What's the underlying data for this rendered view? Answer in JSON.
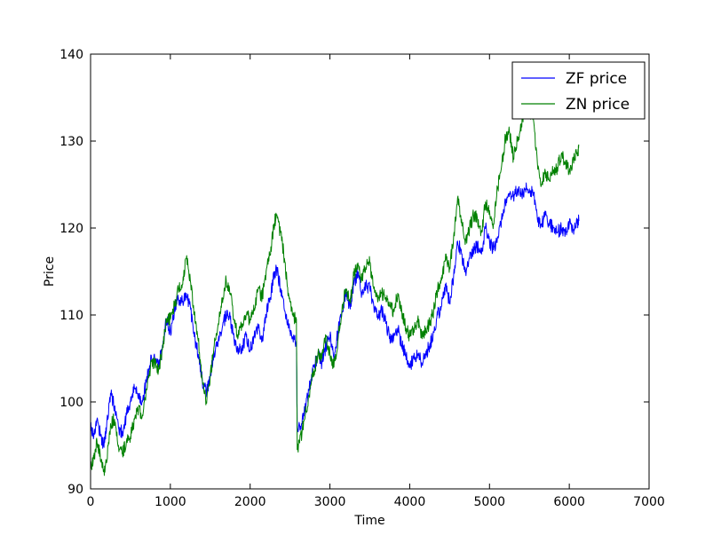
{
  "chart_data": {
    "type": "line",
    "title": "",
    "xlabel": "Time",
    "ylabel": "Price",
    "xlim": [
      0,
      7000
    ],
    "ylim": [
      90,
      140
    ],
    "x_ticks": [
      0,
      1000,
      2000,
      3000,
      4000,
      5000,
      6000,
      7000
    ],
    "x_tick_labels": [
      "0",
      "1000",
      "2000",
      "3000",
      "4000",
      "5000",
      "6000",
      "7000"
    ],
    "y_ticks": [
      90,
      100,
      110,
      120,
      130,
      140
    ],
    "y_tick_labels": [
      "90",
      "100",
      "110",
      "120",
      "130",
      "140"
    ],
    "grid": false,
    "legend_position": "upper right",
    "series": [
      {
        "name": "ZF price",
        "color": "#0000ff",
        "points": [
          [
            0,
            97.5
          ],
          [
            40,
            96.0
          ],
          [
            80,
            98.0
          ],
          [
            120,
            96.5
          ],
          [
            160,
            95.0
          ],
          [
            200,
            97.0
          ],
          [
            250,
            101.0
          ],
          [
            300,
            99.5
          ],
          [
            350,
            97.0
          ],
          [
            400,
            96.5
          ],
          [
            450,
            98.5
          ],
          [
            500,
            100.0
          ],
          [
            550,
            101.5
          ],
          [
            600,
            101.0
          ],
          [
            650,
            100.0
          ],
          [
            700,
            102.5
          ],
          [
            750,
            104.5
          ],
          [
            800,
            105.5
          ],
          [
            850,
            104.0
          ],
          [
            900,
            106.5
          ],
          [
            950,
            109.5
          ],
          [
            1000,
            108.0
          ],
          [
            1050,
            110.5
          ],
          [
            1100,
            112.0
          ],
          [
            1150,
            111.5
          ],
          [
            1200,
            112.5
          ],
          [
            1250,
            111.0
          ],
          [
            1300,
            107.5
          ],
          [
            1350,
            105.5
          ],
          [
            1400,
            102.5
          ],
          [
            1450,
            101.0
          ],
          [
            1500,
            103.0
          ],
          [
            1550,
            105.5
          ],
          [
            1600,
            107.0
          ],
          [
            1650,
            108.5
          ],
          [
            1700,
            110.0
          ],
          [
            1750,
            109.5
          ],
          [
            1800,
            107.0
          ],
          [
            1850,
            105.5
          ],
          [
            1900,
            106.5
          ],
          [
            1950,
            107.5
          ],
          [
            2000,
            106.0
          ],
          [
            2050,
            107.5
          ],
          [
            2100,
            108.5
          ],
          [
            2150,
            107.0
          ],
          [
            2200,
            110.0
          ],
          [
            2250,
            112.0
          ],
          [
            2300,
            114.5
          ],
          [
            2330,
            115.5
          ],
          [
            2380,
            113.0
          ],
          [
            2430,
            110.5
          ],
          [
            2480,
            108.5
          ],
          [
            2530,
            107.5
          ],
          [
            2580,
            107.0
          ],
          [
            2590,
            97.0
          ],
          [
            2650,
            97.5
          ],
          [
            2700,
            99.5
          ],
          [
            2750,
            102.0
          ],
          [
            2800,
            104.0
          ],
          [
            2850,
            105.5
          ],
          [
            2900,
            104.5
          ],
          [
            2950,
            106.5
          ],
          [
            3000,
            107.5
          ],
          [
            3050,
            105.0
          ],
          [
            3100,
            108.0
          ],
          [
            3150,
            110.5
          ],
          [
            3200,
            112.5
          ],
          [
            3250,
            111.0
          ],
          [
            3300,
            113.5
          ],
          [
            3350,
            115.0
          ],
          [
            3400,
            112.5
          ],
          [
            3450,
            113.5
          ],
          [
            3500,
            113.0
          ],
          [
            3550,
            111.0
          ],
          [
            3600,
            109.5
          ],
          [
            3650,
            110.5
          ],
          [
            3700,
            109.0
          ],
          [
            3750,
            107.5
          ],
          [
            3800,
            107.5
          ],
          [
            3850,
            108.5
          ],
          [
            3900,
            106.5
          ],
          [
            3950,
            105.5
          ],
          [
            4000,
            104.0
          ],
          [
            4050,
            105.0
          ],
          [
            4100,
            105.5
          ],
          [
            4150,
            104.5
          ],
          [
            4200,
            105.5
          ],
          [
            4250,
            106.5
          ],
          [
            4300,
            108.0
          ],
          [
            4350,
            110.0
          ],
          [
            4400,
            111.0
          ],
          [
            4450,
            113.5
          ],
          [
            4500,
            111.5
          ],
          [
            4550,
            114.5
          ],
          [
            4600,
            118.5
          ],
          [
            4650,
            117.0
          ],
          [
            4700,
            115.0
          ],
          [
            4750,
            116.5
          ],
          [
            4800,
            117.5
          ],
          [
            4850,
            118.0
          ],
          [
            4900,
            117.0
          ],
          [
            4950,
            120.0
          ],
          [
            5000,
            118.5
          ],
          [
            5050,
            117.5
          ],
          [
            5100,
            119.0
          ],
          [
            5150,
            121.0
          ],
          [
            5200,
            123.0
          ],
          [
            5250,
            124.0
          ],
          [
            5300,
            123.5
          ],
          [
            5350,
            124.5
          ],
          [
            5400,
            124.0
          ],
          [
            5450,
            124.5
          ],
          [
            5500,
            124.5
          ],
          [
            5550,
            124.0
          ],
          [
            5600,
            121.0
          ],
          [
            5650,
            120.5
          ],
          [
            5700,
            121.5
          ],
          [
            5750,
            120.5
          ],
          [
            5800,
            120.0
          ],
          [
            5850,
            119.5
          ],
          [
            5900,
            120.0
          ],
          [
            5950,
            119.5
          ],
          [
            6000,
            120.5
          ],
          [
            6050,
            119.8
          ],
          [
            6100,
            120.5
          ],
          [
            6120,
            120.8
          ]
        ]
      },
      {
        "name": "ZN price",
        "color": "#008000",
        "points": [
          [
            0,
            92.5
          ],
          [
            40,
            93.5
          ],
          [
            80,
            95.5
          ],
          [
            120,
            94.0
          ],
          [
            160,
            92.0
          ],
          [
            200,
            93.0
          ],
          [
            250,
            97.5
          ],
          [
            300,
            98.0
          ],
          [
            350,
            95.0
          ],
          [
            400,
            94.0
          ],
          [
            450,
            95.5
          ],
          [
            500,
            96.0
          ],
          [
            550,
            98.0
          ],
          [
            600,
            99.0
          ],
          [
            650,
            98.5
          ],
          [
            700,
            101.5
          ],
          [
            750,
            104.0
          ],
          [
            800,
            104.5
          ],
          [
            850,
            103.5
          ],
          [
            900,
            106.0
          ],
          [
            950,
            109.5
          ],
          [
            1000,
            109.5
          ],
          [
            1050,
            111.0
          ],
          [
            1100,
            113.0
          ],
          [
            1150,
            113.5
          ],
          [
            1200,
            116.5
          ],
          [
            1250,
            114.0
          ],
          [
            1300,
            110.0
          ],
          [
            1350,
            107.0
          ],
          [
            1400,
            102.5
          ],
          [
            1450,
            100.0
          ],
          [
            1500,
            103.0
          ],
          [
            1550,
            106.5
          ],
          [
            1600,
            109.0
          ],
          [
            1650,
            112.0
          ],
          [
            1700,
            114.0
          ],
          [
            1750,
            112.5
          ],
          [
            1800,
            109.5
          ],
          [
            1850,
            107.5
          ],
          [
            1900,
            109.0
          ],
          [
            1950,
            110.0
          ],
          [
            2000,
            109.5
          ],
          [
            2050,
            110.5
          ],
          [
            2100,
            113.0
          ],
          [
            2150,
            112.0
          ],
          [
            2200,
            115.0
          ],
          [
            2250,
            117.0
          ],
          [
            2300,
            120.5
          ],
          [
            2330,
            121.5
          ],
          [
            2380,
            119.5
          ],
          [
            2430,
            116.5
          ],
          [
            2480,
            112.5
          ],
          [
            2530,
            110.0
          ],
          [
            2580,
            109.5
          ],
          [
            2590,
            94.5
          ],
          [
            2650,
            96.5
          ],
          [
            2700,
            99.0
          ],
          [
            2750,
            101.5
          ],
          [
            2800,
            103.5
          ],
          [
            2850,
            105.5
          ],
          [
            2900,
            105.0
          ],
          [
            2950,
            107.5
          ],
          [
            3000,
            105.5
          ],
          [
            3050,
            104.0
          ],
          [
            3100,
            107.0
          ],
          [
            3150,
            110.5
          ],
          [
            3200,
            113.0
          ],
          [
            3250,
            111.5
          ],
          [
            3300,
            114.5
          ],
          [
            3350,
            116.0
          ],
          [
            3400,
            114.0
          ],
          [
            3450,
            115.5
          ],
          [
            3500,
            116.0
          ],
          [
            3550,
            113.0
          ],
          [
            3600,
            111.5
          ],
          [
            3650,
            112.5
          ],
          [
            3700,
            112.0
          ],
          [
            3750,
            111.0
          ],
          [
            3800,
            110.5
          ],
          [
            3850,
            112.5
          ],
          [
            3900,
            110.5
          ],
          [
            3950,
            108.5
          ],
          [
            4000,
            107.5
          ],
          [
            4050,
            108.5
          ],
          [
            4100,
            109.5
          ],
          [
            4150,
            107.5
          ],
          [
            4200,
            108.5
          ],
          [
            4250,
            109.0
          ],
          [
            4300,
            110.5
          ],
          [
            4350,
            113.0
          ],
          [
            4400,
            114.0
          ],
          [
            4450,
            117.0
          ],
          [
            4500,
            115.5
          ],
          [
            4550,
            119.0
          ],
          [
            4600,
            123.5
          ],
          [
            4650,
            121.0
          ],
          [
            4700,
            118.5
          ],
          [
            4750,
            120.0
          ],
          [
            4800,
            121.5
          ],
          [
            4850,
            121.0
          ],
          [
            4900,
            119.5
          ],
          [
            4950,
            123.0
          ],
          [
            5000,
            122.0
          ],
          [
            5050,
            120.5
          ],
          [
            5100,
            124.5
          ],
          [
            5150,
            127.0
          ],
          [
            5200,
            130.5
          ],
          [
            5250,
            131.0
          ],
          [
            5300,
            128.0
          ],
          [
            5350,
            130.0
          ],
          [
            5400,
            132.0
          ],
          [
            5450,
            134.5
          ],
          [
            5500,
            133.5
          ],
          [
            5550,
            132.5
          ],
          [
            5600,
            127.5
          ],
          [
            5650,
            125.0
          ],
          [
            5700,
            126.5
          ],
          [
            5750,
            125.5
          ],
          [
            5800,
            126.5
          ],
          [
            5850,
            127.0
          ],
          [
            5900,
            128.5
          ],
          [
            5950,
            127.5
          ],
          [
            6000,
            126.5
          ],
          [
            6050,
            128.0
          ],
          [
            6100,
            128.5
          ],
          [
            6120,
            129.5
          ]
        ]
      }
    ]
  }
}
